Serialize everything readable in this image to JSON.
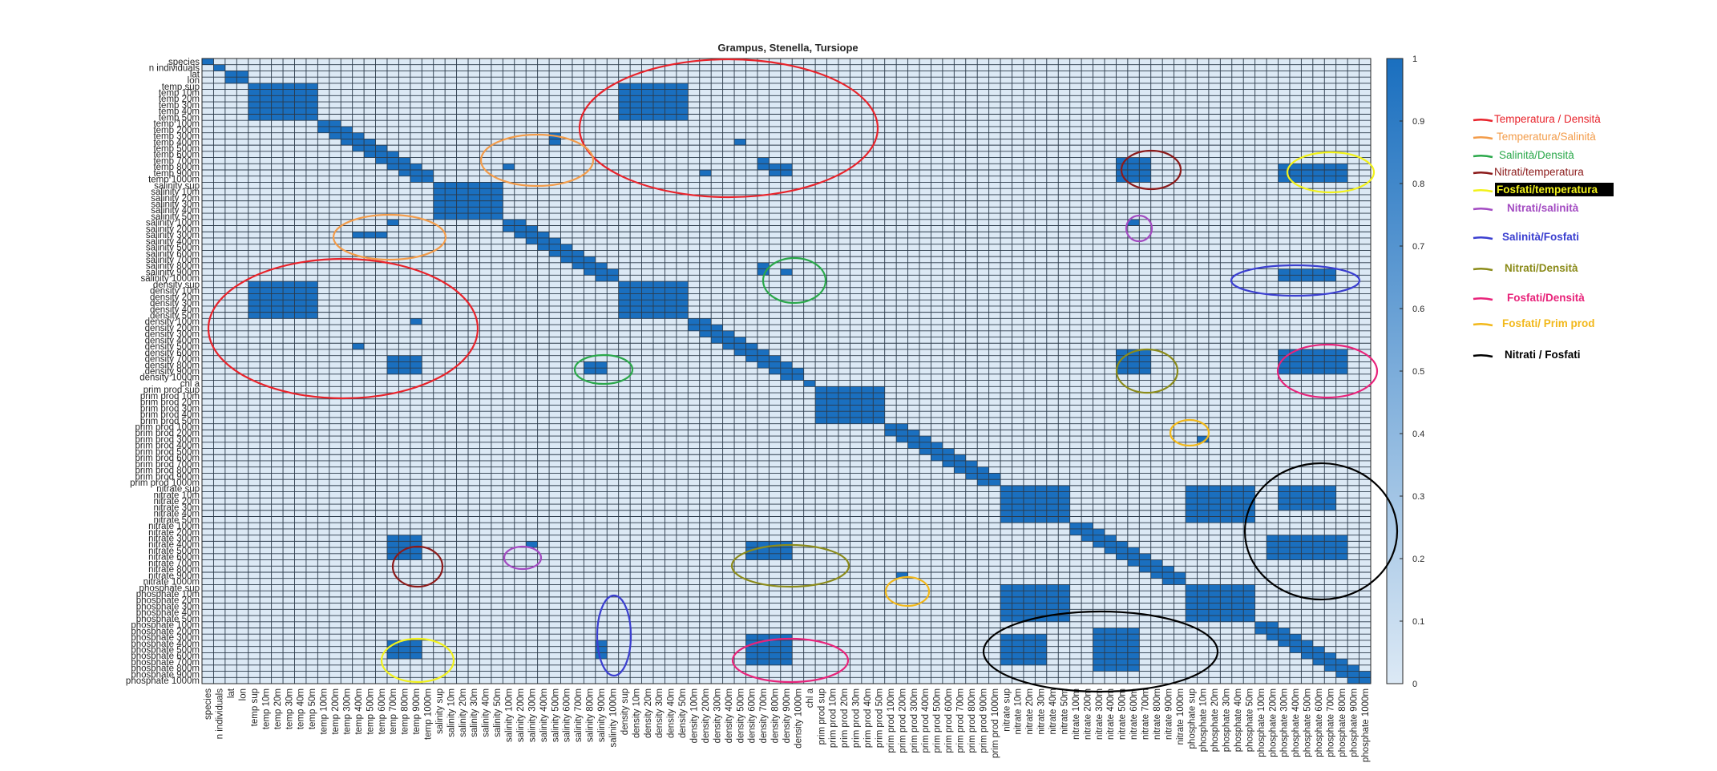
{
  "chart_data": {
    "type": "heatmap",
    "title": "Grampus, Stenella, Tursiope",
    "labels": [
      "species",
      "n individuals",
      "lat",
      "lon",
      "temp sup",
      "temp 10m",
      "temp 20m",
      "temp 30m",
      "temp 40m",
      "temp 50m",
      "temp 100m",
      "temp 200m",
      "temp 300m",
      "temp 400m",
      "temp 500m",
      "temp 600m",
      "temp 700m",
      "temp 800m",
      "temp 900m",
      "temp 1000m",
      "salinity sup",
      "salinity 10m",
      "salinity 20m",
      "salinity 30m",
      "salinity 40m",
      "salinity 50m",
      "salinity 100m",
      "salinity 200m",
      "salinity 300m",
      "salinity 400m",
      "salinity 500m",
      "salinity 600m",
      "salinity 700m",
      "salinity 800m",
      "salinity 900m",
      "salinity 1000m",
      "density sup",
      "density 10m",
      "density 20m",
      "density 30m",
      "density 40m",
      "density 50m",
      "density 100m",
      "density 200m",
      "density 300m",
      "density 400m",
      "density 500m",
      "density 600m",
      "density 700m",
      "density 800m",
      "density 900m",
      "density 1000m",
      "chl a",
      "prim prod sup",
      "prim prod 10m",
      "prim prod 20m",
      "prim prod 30m",
      "prim prod 40m",
      "prim prod 50m",
      "prim prod 100m",
      "prim prod 200m",
      "prim prod 300m",
      "prim prod 400m",
      "prim prod 500m",
      "prim prod 600m",
      "prim prod 700m",
      "prim prod 800m",
      "prim prod 900m",
      "prim prod 1000m",
      "nitrate sup",
      "nitrate 10m",
      "nitrate 20m",
      "nitrate 30m",
      "nitrate 40m",
      "nitrate 50m",
      "nitrate 100m",
      "nitrate 200m",
      "nitrate 300m",
      "nitrate 400m",
      "nitrate 500m",
      "nitrate 600m",
      "nitrate 700m",
      "nitrate 800m",
      "nitrate 900m",
      "nitrate 1000m",
      "phosphate sup",
      "phosphate 10m",
      "phosphate 20m",
      "phosphate 30m",
      "phosphate 40m",
      "phosphate 50m",
      "phosphate 100m",
      "phosphate 200m",
      "phosphate 300m",
      "phosphate 400m",
      "phosphate 500m",
      "phosphate 600m",
      "phosphate 700m",
      "phosphate 800m",
      "phosphate 900m",
      "phosphate 1000m"
    ],
    "blocks": [
      {
        "rows": [
          0,
          0
        ],
        "cols": [
          0,
          0
        ],
        "value": 1
      },
      {
        "rows": [
          1,
          1
        ],
        "cols": [
          1,
          1
        ],
        "value": 1
      },
      {
        "rows": [
          2,
          3
        ],
        "cols": [
          2,
          3
        ],
        "value": 1
      },
      {
        "rows": [
          4,
          9
        ],
        "cols": [
          4,
          9
        ],
        "value": 1
      },
      {
        "rows": [
          10,
          19
        ],
        "cols": [
          10,
          19
        ],
        "band": 1,
        "value": 1
      },
      {
        "rows": [
          20,
          25
        ],
        "cols": [
          20,
          25
        ],
        "value": 1
      },
      {
        "rows": [
          26,
          35
        ],
        "cols": [
          26,
          35
        ],
        "band": 1,
        "value": 1
      },
      {
        "rows": [
          36,
          41
        ],
        "cols": [
          36,
          41
        ],
        "value": 1
      },
      {
        "rows": [
          42,
          51
        ],
        "cols": [
          42,
          51
        ],
        "band": 1,
        "value": 1
      },
      {
        "rows": [
          52,
          52
        ],
        "cols": [
          52,
          52
        ],
        "value": 1
      },
      {
        "rows": [
          53,
          58
        ],
        "cols": [
          53,
          58
        ],
        "value": 1
      },
      {
        "rows": [
          59,
          68
        ],
        "cols": [
          59,
          68
        ],
        "band": 1,
        "value": 1
      },
      {
        "rows": [
          69,
          74
        ],
        "cols": [
          69,
          74
        ],
        "value": 1
      },
      {
        "rows": [
          75,
          84
        ],
        "cols": [
          75,
          84
        ],
        "band": 1,
        "value": 1
      },
      {
        "rows": [
          85,
          90
        ],
        "cols": [
          85,
          90
        ],
        "value": 1
      },
      {
        "rows": [
          91,
          100
        ],
        "cols": [
          91,
          100
        ],
        "band": 1,
        "value": 1
      },
      {
        "rows": [
          4,
          9
        ],
        "cols": [
          36,
          41
        ],
        "value": 1
      },
      {
        "rows": [
          36,
          41
        ],
        "cols": [
          4,
          9
        ],
        "value": 1
      },
      {
        "rows": [
          13,
          13
        ],
        "cols": [
          46,
          46
        ],
        "value": 1
      },
      {
        "rows": [
          16,
          17
        ],
        "cols": [
          48,
          48
        ],
        "value": 1
      },
      {
        "rows": [
          17,
          18
        ],
        "cols": [
          50,
          50
        ],
        "value": 1
      },
      {
        "rows": [
          17,
          18
        ],
        "cols": [
          49,
          49
        ],
        "value": 1
      },
      {
        "rows": [
          18,
          18
        ],
        "cols": [
          43,
          43
        ],
        "value": 1
      },
      {
        "rows": [
          17,
          17
        ],
        "cols": [
          26,
          26
        ],
        "value": 1
      },
      {
        "rows": [
          12,
          13
        ],
        "cols": [
          30,
          30
        ],
        "value": 1
      },
      {
        "rows": [
          46,
          46
        ],
        "cols": [
          13,
          13
        ],
        "value": 1
      },
      {
        "rows": [
          48,
          50
        ],
        "cols": [
          16,
          17
        ],
        "value": 1
      },
      {
        "rows": [
          42,
          42
        ],
        "cols": [
          18,
          18
        ],
        "value": 1
      },
      {
        "rows": [
          48,
          50
        ],
        "cols": [
          18,
          18
        ],
        "value": 1
      },
      {
        "rows": [
          26,
          26
        ],
        "cols": [
          16,
          16
        ],
        "value": 1
      },
      {
        "rows": [
          28,
          28
        ],
        "cols": [
          13,
          15
        ],
        "value": 1
      },
      {
        "rows": [
          33,
          34
        ],
        "cols": [
          48,
          48
        ],
        "value": 1
      },
      {
        "rows": [
          34,
          34
        ],
        "cols": [
          50,
          50
        ],
        "value": 1
      },
      {
        "rows": [
          49,
          50
        ],
        "cols": [
          33,
          34
        ],
        "value": 1
      },
      {
        "rows": [
          16,
          19
        ],
        "cols": [
          79,
          81
        ],
        "value": 1
      },
      {
        "rows": [
          77,
          80
        ],
        "cols": [
          16,
          18
        ],
        "value": 1
      },
      {
        "rows": [
          26,
          26
        ],
        "cols": [
          80,
          80
        ],
        "value": 1
      },
      {
        "rows": [
          78,
          78
        ],
        "cols": [
          28,
          28
        ],
        "value": 1
      },
      {
        "rows": [
          17,
          19
        ],
        "cols": [
          93,
          98
        ],
        "value": 1
      },
      {
        "rows": [
          94,
          96
        ],
        "cols": [
          16,
          18
        ],
        "value": 1
      },
      {
        "rows": [
          34,
          35
        ],
        "cols": [
          93,
          97
        ],
        "value": 1
      },
      {
        "rows": [
          94,
          96
        ],
        "cols": [
          34,
          34
        ],
        "value": 1
      },
      {
        "rows": [
          47,
          50
        ],
        "cols": [
          79,
          81
        ],
        "value": 1
      },
      {
        "rows": [
          78,
          80
        ],
        "cols": [
          47,
          50
        ],
        "value": 1
      },
      {
        "rows": [
          47,
          50
        ],
        "cols": [
          93,
          98
        ],
        "value": 1
      },
      {
        "rows": [
          93,
          97
        ],
        "cols": [
          47,
          50
        ],
        "value": 1
      },
      {
        "rows": [
          61,
          61
        ],
        "cols": [
          86,
          86
        ],
        "value": 1
      },
      {
        "rows": [
          83,
          83
        ],
        "cols": [
          60,
          60
        ],
        "value": 1
      },
      {
        "rows": [
          69,
          74
        ],
        "cols": [
          85,
          90
        ],
        "value": 1
      },
      {
        "rows": [
          85,
          90
        ],
        "cols": [
          69,
          74
        ],
        "value": 1
      },
      {
        "rows": [
          77,
          80
        ],
        "cols": [
          92,
          98
        ],
        "value": 1
      },
      {
        "rows": [
          92,
          98
        ],
        "cols": [
          77,
          80
        ],
        "value": 1
      },
      {
        "rows": [
          93,
          97
        ],
        "cols": [
          69,
          72
        ],
        "value": 1
      },
      {
        "rows": [
          69,
          72
        ],
        "cols": [
          93,
          97
        ],
        "value": 1
      }
    ],
    "colorbar": {
      "min": 0,
      "max": 1,
      "ticks": [
        "0",
        "0.1",
        "0.2",
        "0.3",
        "0.4",
        "0.5",
        "0.6",
        "0.7",
        "0.8",
        "0.9",
        "1"
      ]
    },
    "colors": {
      "high": "#1a6fbf",
      "low": "#dce9f5",
      "grid": "#2b3a4a"
    }
  },
  "legend": [
    {
      "text": "Temperatura / Densità",
      "color": "#e8232b"
    },
    {
      "text": "Temperatura/Salinità",
      "color": "#f39c4a"
    },
    {
      "text": "Salinità/Densità",
      "color": "#2aa84a"
    },
    {
      "text": "Nitrati/temperatura",
      "color": "#8b1a1a"
    },
    {
      "text": "Fosfati/temperatura",
      "color": "#f2f21a",
      "highlight": "#000000"
    },
    {
      "text": "Nitrati/salinità",
      "color": "#a34bc2"
    },
    {
      "text": "Salinità/Fosfati",
      "color": "#3b3fd0"
    },
    {
      "text": "Nitrati/Densità",
      "color": "#8b8b1a"
    },
    {
      "text": "Fosfati/Densità",
      "color": "#e8237a"
    },
    {
      "text": "Fosfati/ Prim prod",
      "color": "#f2b81a"
    },
    {
      "text": "Nitrati / Fosfati",
      "color": "#000000"
    }
  ]
}
